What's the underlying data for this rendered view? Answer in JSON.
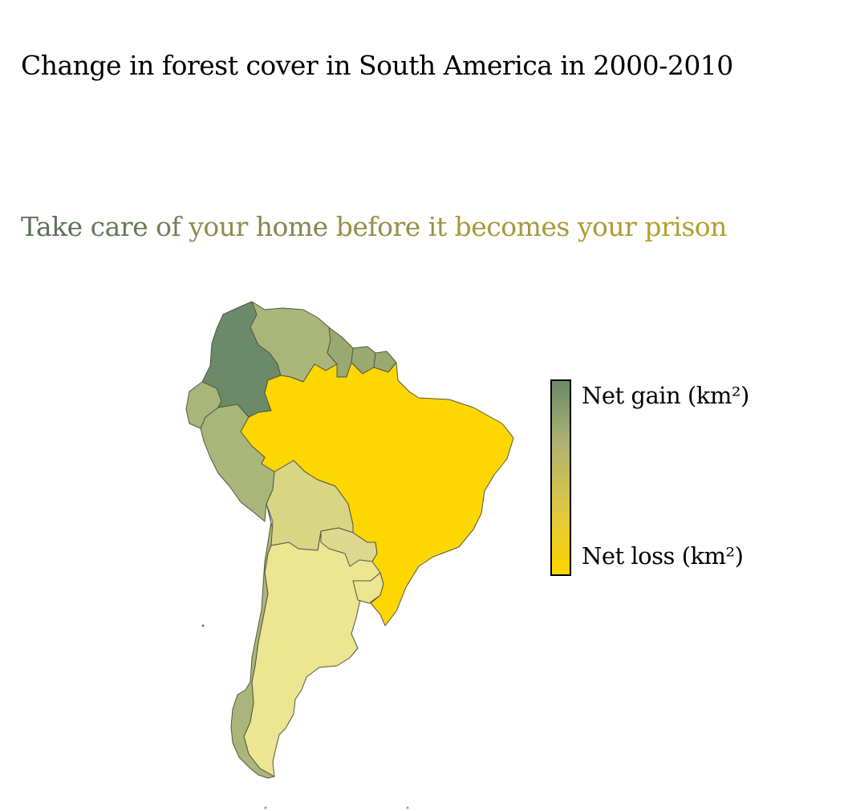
{
  "title": "Change in forest cover in South America in 2000-2010",
  "subtitle": {
    "words": [
      {
        "text": "Take",
        "color": "#5d7358"
      },
      {
        "text": "care",
        "color": "#67795a"
      },
      {
        "text": "of",
        "color": "#727f5a"
      },
      {
        "text": "your",
        "color": "#8e8d4d"
      },
      {
        "text": "home",
        "color": "#858650"
      },
      {
        "text": "before",
        "color": "#968f45"
      },
      {
        "text": "it",
        "color": "#9d9240"
      },
      {
        "text": "becomes",
        "color": "#a8983a"
      },
      {
        "text": "your",
        "color": "#ae9a34"
      },
      {
        "text": "prison",
        "color": "#b4a02c"
      }
    ]
  },
  "legend": {
    "top_label": "Net gain (km²)",
    "bottom_label": "Net loss (km²)",
    "gain_color": "#6a8a68",
    "loss_color": "#ffd400"
  },
  "map": {
    "colors": {
      "colombia": "#6b8a69",
      "venezuela": "#a9b67a",
      "guianas": "#9aa96f",
      "ecuador_peru": "#a9b67a",
      "brazil": "#ffd700",
      "bolivia": "#d8d585",
      "paraguay": "#dcd890",
      "argentina_chile": "#ece591",
      "chile": "#a9b67a",
      "uruguay": "#ece591"
    }
  }
}
